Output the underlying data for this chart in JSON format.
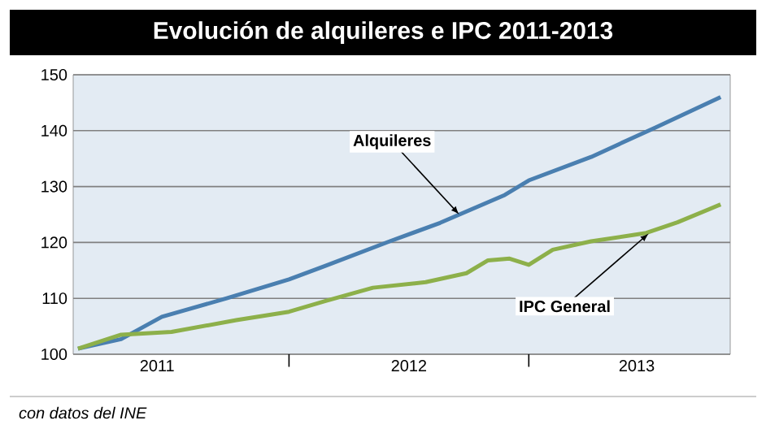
{
  "chart_data": {
    "type": "line",
    "title": "Evolución de alquileres e IPC 2011-2013",
    "series": [
      {
        "color": "#4a7fb0",
        "x": [
          2011.12,
          2011.3,
          2011.47,
          2011.74,
          2012.0,
          2012.15,
          2012.42,
          2012.63,
          2012.9,
          2013.0,
          2013.26,
          2013.53,
          2013.8
        ],
        "values": [
          101,
          102.7,
          106.7,
          110,
          113.4,
          115.8,
          120.2,
          123.5,
          128.5,
          131.1,
          135.3,
          140.6,
          146
        ]
      },
      {
        "color": "#8db04a",
        "x": [
          2011.12,
          2011.3,
          2011.51,
          2011.78,
          2012.0,
          2012.15,
          2012.35,
          2012.57,
          2012.74,
          2012.83,
          2012.92,
          2013.0,
          2013.1,
          2013.26,
          2013.49,
          2013.62,
          2013.8
        ],
        "values": [
          101,
          103.5,
          104,
          106.1,
          107.6,
          109.5,
          111.9,
          112.9,
          114.5,
          116.8,
          117.1,
          116,
          118.7,
          120.2,
          121.7,
          123.6,
          126.8
        ]
      }
    ],
    "xlim": [
      2011.1,
      2013.84
    ],
    "xticks": [
      {
        "value": 2011.45,
        "label": "2011"
      },
      {
        "value": 2012,
        "label": null
      },
      {
        "value": 2012.5,
        "label": "2012"
      },
      {
        "value": 2013,
        "label": null
      },
      {
        "value": 2013.45,
        "label": "2013"
      }
    ],
    "ylim": [
      100,
      150
    ],
    "yticks": [
      100,
      110,
      120,
      130,
      140,
      150
    ],
    "grid": "y",
    "annotations": [
      {
        "text": "Alquileres",
        "x": 2012.71,
        "y": 125
      },
      {
        "text": "IPC General",
        "x": 2013.5,
        "y": 121.6
      },
      "con datos del INE"
    ]
  }
}
